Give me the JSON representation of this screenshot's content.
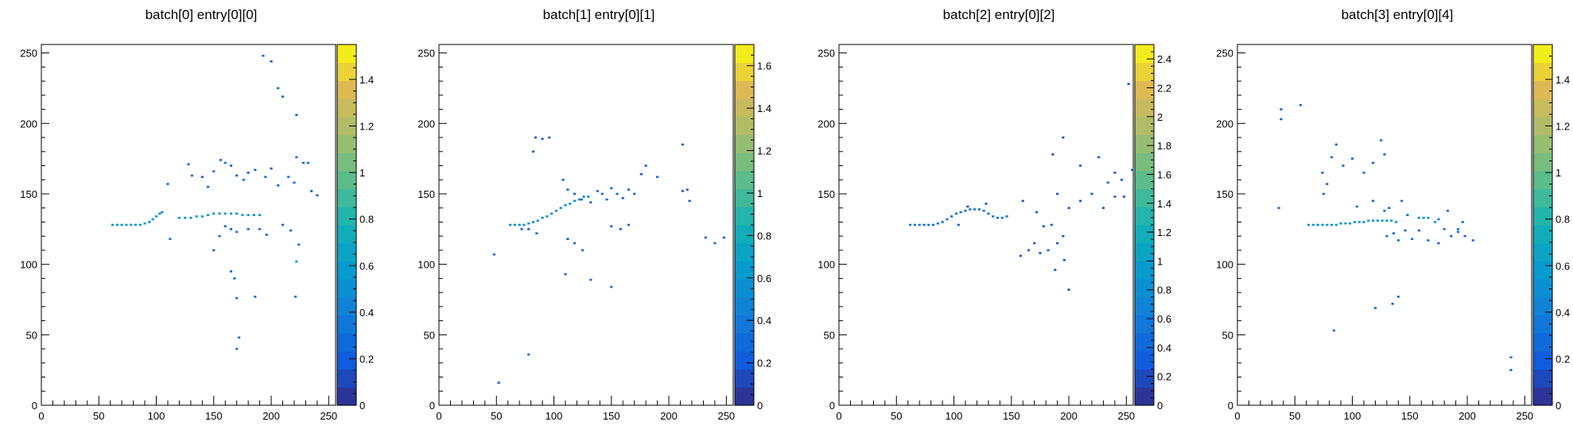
{
  "chart_data": [
    {
      "type": "heatmap",
      "title": "batch[0] entry[0][0]",
      "xlim": [
        0,
        256
      ],
      "ylim": [
        0,
        256
      ],
      "xticks": [
        0,
        50,
        100,
        150,
        200,
        250
      ],
      "yticks": [
        0,
        50,
        100,
        150,
        200,
        250
      ],
      "zlim": [
        0,
        1.55
      ],
      "zticks": [
        0,
        0.2,
        0.4,
        0.6,
        0.8,
        1,
        1.2,
        1.4
      ],
      "zticklabels": [
        "0",
        "0.2",
        "0.4",
        "0.6",
        "0.8",
        "1",
        "1.2",
        "1.4"
      ],
      "points": [
        [
          62,
          128,
          0.5
        ],
        [
          66,
          128,
          0.55
        ],
        [
          70,
          128,
          0.5
        ],
        [
          74,
          128,
          0.6
        ],
        [
          78,
          128,
          0.55
        ],
        [
          82,
          128,
          0.5
        ],
        [
          86,
          128,
          0.55
        ],
        [
          90,
          129,
          0.6
        ],
        [
          94,
          130,
          0.5
        ],
        [
          97,
          132,
          0.55
        ],
        [
          100,
          134,
          0.6
        ],
        [
          103,
          136,
          0.5
        ],
        [
          105,
          137,
          0.45
        ],
        [
          120,
          133,
          0.5
        ],
        [
          125,
          133,
          0.55
        ],
        [
          130,
          133,
          0.5
        ],
        [
          135,
          134,
          0.6
        ],
        [
          140,
          134,
          0.55
        ],
        [
          145,
          135,
          0.5
        ],
        [
          150,
          136,
          0.45
        ],
        [
          155,
          136,
          0.5
        ],
        [
          160,
          136,
          0.55
        ],
        [
          165,
          136,
          0.6
        ],
        [
          170,
          136,
          0.5
        ],
        [
          175,
          135,
          0.55
        ],
        [
          180,
          135,
          0.5
        ],
        [
          185,
          135,
          0.45
        ],
        [
          190,
          135,
          0.5
        ],
        [
          193,
          248,
          0.3
        ],
        [
          200,
          244,
          0.2
        ],
        [
          206,
          225,
          0.3
        ],
        [
          210,
          219,
          0.25
        ],
        [
          222,
          206,
          0.2
        ],
        [
          110,
          157,
          0.3
        ],
        [
          128,
          171,
          0.25
        ],
        [
          131,
          163,
          0.3
        ],
        [
          140,
          162,
          0.2
        ],
        [
          145,
          155,
          0.25
        ],
        [
          150,
          166,
          0.3
        ],
        [
          156,
          174,
          0.25
        ],
        [
          160,
          172,
          0.3
        ],
        [
          165,
          170,
          0.2
        ],
        [
          170,
          163,
          0.25
        ],
        [
          176,
          160,
          0.3
        ],
        [
          180,
          165,
          0.2
        ],
        [
          186,
          167,
          0.25
        ],
        [
          195,
          162,
          0.3
        ],
        [
          200,
          168,
          0.2
        ],
        [
          206,
          156,
          0.25
        ],
        [
          215,
          162,
          0.3
        ],
        [
          220,
          158,
          0.25
        ],
        [
          222,
          176,
          0.3
        ],
        [
          228,
          172,
          0.25
        ],
        [
          232,
          172,
          0.3
        ],
        [
          235,
          152,
          0.2
        ],
        [
          240,
          149,
          0.25
        ],
        [
          112,
          118,
          0.3
        ],
        [
          150,
          110,
          0.25
        ],
        [
          155,
          120,
          0.3
        ],
        [
          160,
          127,
          0.2
        ],
        [
          165,
          125,
          0.25
        ],
        [
          170,
          123,
          0.3
        ],
        [
          180,
          125,
          0.25
        ],
        [
          190,
          125,
          0.3
        ],
        [
          196,
          121,
          0.2
        ],
        [
          210,
          128,
          0.25
        ],
        [
          217,
          124,
          0.3
        ],
        [
          224,
          114,
          0.25
        ],
        [
          222,
          102,
          0.5
        ],
        [
          165,
          95,
          0.25
        ],
        [
          168,
          90,
          0.3
        ],
        [
          170,
          76,
          0.3
        ],
        [
          186,
          77,
          0.25
        ],
        [
          221,
          77,
          0.3
        ],
        [
          172,
          48,
          0.25
        ],
        [
          170,
          40,
          0.3
        ]
      ]
    },
    {
      "type": "heatmap",
      "title": "batch[1] entry[0][1]",
      "xlim": [
        0,
        256
      ],
      "ylim": [
        0,
        256
      ],
      "xticks": [
        0,
        50,
        100,
        150,
        200,
        250
      ],
      "yticks": [
        0,
        50,
        100,
        150,
        200,
        250
      ],
      "zlim": [
        0,
        1.7
      ],
      "zticks": [
        0,
        0.2,
        0.4,
        0.6,
        0.8,
        1,
        1.2,
        1.4,
        1.6
      ],
      "zticklabels": [
        "0",
        "0.2",
        "0.4",
        "0.6",
        "0.8",
        "1",
        "1.2",
        "1.4",
        "1.6"
      ],
      "points": [
        [
          62,
          128,
          0.5
        ],
        [
          66,
          128,
          0.55
        ],
        [
          70,
          128,
          0.5
        ],
        [
          74,
          128,
          0.55
        ],
        [
          78,
          129,
          0.6
        ],
        [
          82,
          130,
          0.5
        ],
        [
          86,
          131,
          0.55
        ],
        [
          90,
          133,
          0.5
        ],
        [
          94,
          134,
          0.6
        ],
        [
          98,
          136,
          0.55
        ],
        [
          102,
          138,
          0.5
        ],
        [
          106,
          140,
          0.55
        ],
        [
          110,
          142,
          0.5
        ],
        [
          114,
          143,
          0.6
        ],
        [
          118,
          145,
          0.5
        ],
        [
          122,
          146,
          0.55
        ],
        [
          126,
          148,
          0.5
        ],
        [
          130,
          148,
          0.55
        ],
        [
          84,
          190,
          0.25
        ],
        [
          90,
          189,
          0.2
        ],
        [
          96,
          190,
          0.25
        ],
        [
          212,
          185,
          0.2
        ],
        [
          190,
          162,
          0.25
        ],
        [
          82,
          180,
          0.2
        ],
        [
          108,
          160,
          0.25
        ],
        [
          112,
          153,
          0.3
        ],
        [
          118,
          150,
          0.25
        ],
        [
          124,
          146,
          0.3
        ],
        [
          132,
          144,
          0.25
        ],
        [
          138,
          152,
          0.3
        ],
        [
          142,
          150,
          0.25
        ],
        [
          146,
          146,
          0.3
        ],
        [
          150,
          154,
          0.25
        ],
        [
          155,
          150,
          0.3
        ],
        [
          160,
          147,
          0.25
        ],
        [
          165,
          153,
          0.3
        ],
        [
          170,
          150,
          0.25
        ],
        [
          176,
          164,
          0.2
        ],
        [
          180,
          170,
          0.25
        ],
        [
          212,
          152,
          0.2
        ],
        [
          216,
          153,
          0.25
        ],
        [
          218,
          145,
          0.2
        ],
        [
          72,
          125,
          0.3
        ],
        [
          78,
          125,
          0.25
        ],
        [
          85,
          122,
          0.3
        ],
        [
          112,
          118,
          0.25
        ],
        [
          118,
          115,
          0.3
        ],
        [
          125,
          110,
          0.25
        ],
        [
          150,
          127,
          0.3
        ],
        [
          158,
          125,
          0.25
        ],
        [
          165,
          128,
          0.3
        ],
        [
          232,
          119,
          0.25
        ],
        [
          240,
          115,
          0.3
        ],
        [
          248,
          119,
          0.25
        ],
        [
          48,
          107,
          0.3
        ],
        [
          110,
          93,
          0.25
        ],
        [
          132,
          89,
          0.3
        ],
        [
          150,
          84,
          0.25
        ],
        [
          78,
          36,
          0.3
        ],
        [
          52,
          16,
          0.25
        ]
      ]
    },
    {
      "type": "heatmap",
      "title": "batch[2] entry[0][2]",
      "xlim": [
        0,
        256
      ],
      "ylim": [
        0,
        256
      ],
      "xticks": [
        0,
        50,
        100,
        150,
        200,
        250
      ],
      "yticks": [
        0,
        50,
        100,
        150,
        200,
        250
      ],
      "zlim": [
        0,
        2.5
      ],
      "zticks": [
        0,
        0.2,
        0.4,
        0.6,
        0.8,
        1,
        1.2,
        1.4,
        1.6,
        1.8,
        2,
        2.2,
        2.4
      ],
      "zticklabels": [
        "0",
        "0.2",
        "0.4",
        "0.6",
        "0.8",
        "1",
        "1.2",
        "1.4",
        "1.6",
        "1.8",
        "2",
        "2.2",
        "2.4"
      ],
      "points": [
        [
          62,
          128,
          0.5
        ],
        [
          66,
          128,
          0.55
        ],
        [
          70,
          128,
          0.5
        ],
        [
          74,
          128,
          0.55
        ],
        [
          78,
          128,
          0.6
        ],
        [
          82,
          128,
          0.5
        ],
        [
          86,
          129,
          0.55
        ],
        [
          90,
          130,
          0.5
        ],
        [
          94,
          132,
          0.6
        ],
        [
          98,
          134,
          0.55
        ],
        [
          102,
          136,
          0.5
        ],
        [
          106,
          137,
          0.55
        ],
        [
          110,
          138,
          0.5
        ],
        [
          114,
          139,
          0.6
        ],
        [
          118,
          139,
          0.55
        ],
        [
          122,
          139,
          0.5
        ],
        [
          126,
          138,
          0.55
        ],
        [
          130,
          136,
          0.5
        ],
        [
          134,
          134,
          0.6
        ],
        [
          138,
          133,
          0.55
        ],
        [
          142,
          133,
          0.5
        ],
        [
          146,
          134,
          0.55
        ],
        [
          104,
          128,
          0.3
        ],
        [
          112,
          141,
          0.25
        ],
        [
          128,
          143,
          0.3
        ],
        [
          160,
          145,
          0.25
        ],
        [
          172,
          137,
          0.3
        ],
        [
          178,
          127,
          0.25
        ],
        [
          185,
          128,
          0.3
        ],
        [
          190,
          115,
          0.25
        ],
        [
          195,
          120,
          0.3
        ],
        [
          196,
          103,
          0.25
        ],
        [
          170,
          115,
          0.3
        ],
        [
          175,
          108,
          0.25
        ],
        [
          182,
          110,
          0.3
        ],
        [
          158,
          106,
          0.25
        ],
        [
          165,
          110,
          0.3
        ],
        [
          200,
          82,
          0.25
        ],
        [
          188,
          96,
          0.3
        ],
        [
          195,
          190,
          0.25
        ],
        [
          186,
          178,
          0.2
        ],
        [
          210,
          170,
          0.25
        ],
        [
          226,
          176,
          0.3
        ],
        [
          234,
          158,
          0.5
        ],
        [
          240,
          165,
          0.25
        ],
        [
          246,
          160,
          0.3
        ],
        [
          252,
          228,
          0.25
        ],
        [
          255,
          167,
          0.3
        ],
        [
          248,
          148,
          0.25
        ],
        [
          240,
          148,
          0.3
        ],
        [
          230,
          140,
          0.25
        ],
        [
          220,
          150,
          0.3
        ],
        [
          210,
          145,
          0.25
        ],
        [
          200,
          140,
          0.3
        ],
        [
          190,
          150,
          0.25
        ]
      ]
    },
    {
      "type": "heatmap",
      "title": "batch[3] entry[0][4]",
      "xlim": [
        0,
        256
      ],
      "ylim": [
        0,
        256
      ],
      "xticks": [
        0,
        50,
        100,
        150,
        200,
        250
      ],
      "yticks": [
        0,
        50,
        100,
        150,
        200,
        250
      ],
      "zlim": [
        0,
        1.55
      ],
      "zticks": [
        0,
        0.2,
        0.4,
        0.6,
        0.8,
        1,
        1.2,
        1.4
      ],
      "zticklabels": [
        "0",
        "0.2",
        "0.4",
        "0.6",
        "0.8",
        "1",
        "1.2",
        "1.4"
      ],
      "points": [
        [
          62,
          128,
          0.5
        ],
        [
          66,
          128,
          0.55
        ],
        [
          70,
          128,
          0.5
        ],
        [
          74,
          128,
          0.55
        ],
        [
          78,
          128,
          0.6
        ],
        [
          82,
          128,
          0.5
        ],
        [
          86,
          128,
          0.55
        ],
        [
          90,
          129,
          0.5
        ],
        [
          94,
          129,
          0.6
        ],
        [
          98,
          129,
          0.55
        ],
        [
          102,
          130,
          0.5
        ],
        [
          106,
          130,
          0.55
        ],
        [
          110,
          130,
          0.5
        ],
        [
          114,
          131,
          0.6
        ],
        [
          118,
          131,
          0.55
        ],
        [
          122,
          131,
          0.5
        ],
        [
          126,
          131,
          0.55
        ],
        [
          130,
          131,
          0.5
        ],
        [
          134,
          131,
          0.6
        ],
        [
          138,
          130,
          0.55
        ],
        [
          158,
          133,
          0.5
        ],
        [
          162,
          133,
          0.55
        ],
        [
          166,
          133,
          0.5
        ],
        [
          172,
          130,
          0.55
        ],
        [
          180,
          125,
          0.3
        ],
        [
          186,
          120,
          0.25
        ],
        [
          192,
          123,
          0.3
        ],
        [
          198,
          120,
          0.25
        ],
        [
          205,
          117,
          0.3
        ],
        [
          36,
          140,
          0.3
        ],
        [
          38,
          210,
          0.25
        ],
        [
          38,
          203,
          0.2
        ],
        [
          55,
          213,
          0.3
        ],
        [
          74,
          165,
          0.25
        ],
        [
          75,
          150,
          0.3
        ],
        [
          78,
          157,
          0.25
        ],
        [
          82,
          176,
          0.3
        ],
        [
          86,
          185,
          0.25
        ],
        [
          92,
          170,
          0.3
        ],
        [
          100,
          175,
          0.25
        ],
        [
          110,
          165,
          0.3
        ],
        [
          118,
          172,
          0.25
        ],
        [
          125,
          188,
          0.3
        ],
        [
          128,
          178,
          0.25
        ],
        [
          104,
          141,
          0.3
        ],
        [
          118,
          145,
          0.25
        ],
        [
          128,
          138,
          0.3
        ],
        [
          132,
          140,
          0.25
        ],
        [
          143,
          145,
          0.3
        ],
        [
          148,
          135,
          0.25
        ],
        [
          175,
          132,
          0.3
        ],
        [
          183,
          138,
          0.25
        ],
        [
          192,
          125,
          0.3
        ],
        [
          196,
          130,
          0.25
        ],
        [
          130,
          120,
          0.3
        ],
        [
          136,
          122,
          0.25
        ],
        [
          140,
          117,
          0.3
        ],
        [
          146,
          124,
          0.25
        ],
        [
          152,
          118,
          0.3
        ],
        [
          158,
          124,
          0.25
        ],
        [
          166,
          117,
          0.3
        ],
        [
          175,
          115,
          0.25
        ],
        [
          140,
          77,
          0.3
        ],
        [
          135,
          72,
          0.25
        ],
        [
          120,
          69,
          0.3
        ],
        [
          84,
          53,
          0.25
        ],
        [
          238,
          34,
          0.3
        ],
        [
          238,
          25,
          0.25
        ]
      ]
    }
  ]
}
